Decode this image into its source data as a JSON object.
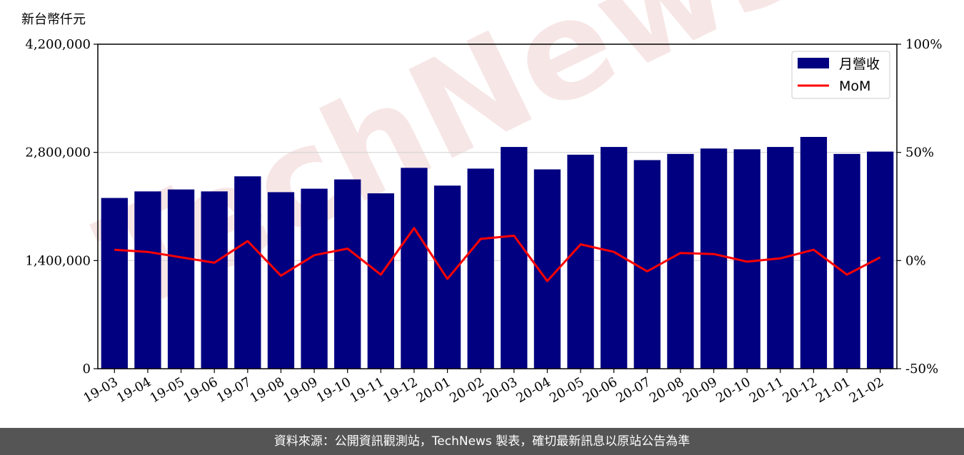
{
  "chart_data": {
    "type": "bar",
    "ylabel": "新台幣仟元",
    "categories": [
      "19-03",
      "19-04",
      "19-05",
      "19-06",
      "19-07",
      "19-08",
      "19-09",
      "19-10",
      "19-11",
      "19-12",
      "20-01",
      "20-02",
      "20-03",
      "20-04",
      "20-05",
      "20-06",
      "20-07",
      "20-08",
      "20-09",
      "20-10",
      "20-11",
      "20-12",
      "21-01",
      "21-02"
    ],
    "series": [
      {
        "name": "月營收",
        "axis": "left",
        "color": "#000080",
        "values": [
          2210000,
          2295000,
          2320000,
          2295000,
          2490000,
          2285000,
          2330000,
          2450000,
          2270000,
          2600000,
          2370000,
          2590000,
          2870000,
          2580000,
          2770000,
          2870000,
          2700000,
          2780000,
          2850000,
          2840000,
          2870000,
          3000000,
          2780000,
          2810000
        ]
      },
      {
        "name": "MoM",
        "axis": "right",
        "type": "line",
        "color": "#ff0000",
        "values": [
          5,
          4,
          1.5,
          -1,
          9,
          -7,
          2.5,
          5.5,
          -6.5,
          15,
          -8.5,
          10,
          11.5,
          -9.5,
          7.5,
          4,
          -5,
          3.5,
          3,
          -0.5,
          1,
          5,
          -6.5,
          1.5
        ]
      }
    ],
    "ylim": [
      0,
      4200000
    ],
    "yticks": [
      "0",
      "1,400,000",
      "2,800,000",
      "4,200,000"
    ],
    "ylim_right": [
      -50,
      100
    ],
    "yticks_right": [
      "-50%",
      "0%",
      "50%",
      "100%"
    ],
    "grid": "horizontal",
    "legend_position": "top-right",
    "watermark": "TechNews"
  },
  "footer": {
    "text": "資料來源：公開資訊觀測站，TechNews 製表，確切最新訊息以原站公告為準"
  }
}
